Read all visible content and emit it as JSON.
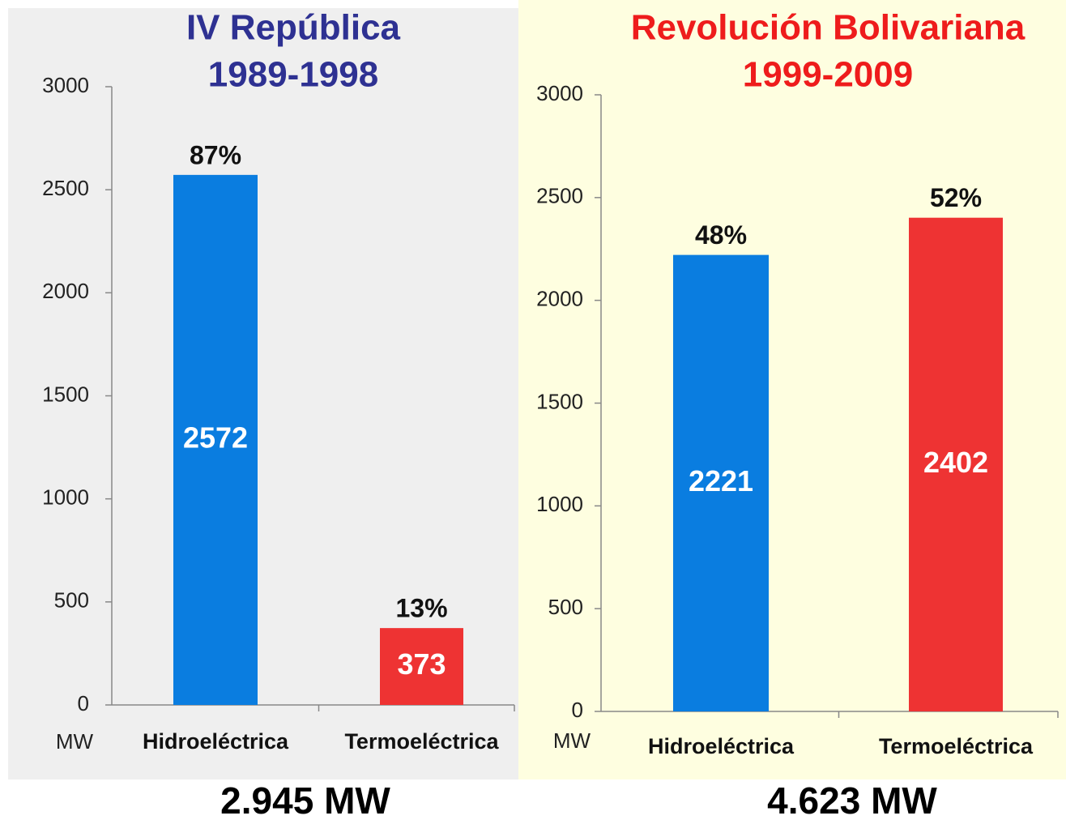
{
  "chart_data": [
    {
      "type": "bar",
      "title": [
        "IV República",
        "1989-1998"
      ],
      "title_color": "#2e3192",
      "categories": [
        "Hidroeléctrica",
        "Termoeléctrica"
      ],
      "values": [
        2572,
        373
      ],
      "colors": [
        "#0a7de0",
        "#ee3333"
      ],
      "annotations": [
        "87%",
        "13%"
      ],
      "unit": "MW",
      "total": "2.945 MW",
      "background": "#efefef",
      "ylim": [
        0,
        3000
      ],
      "yticks": [
        0,
        500,
        1000,
        1500,
        2000,
        2500,
        3000
      ],
      "grid": false
    },
    {
      "type": "bar",
      "title": [
        "Revolución Bolivariana",
        "1999-2009"
      ],
      "title_color": "#ee1c1c",
      "categories": [
        "Hidroeléctrica",
        "Termoeléctrica"
      ],
      "values": [
        2221,
        2402
      ],
      "colors": [
        "#0a7de0",
        "#ee3333"
      ],
      "annotations": [
        "48%",
        "52%"
      ],
      "unit": "MW",
      "total": "4.623 MW",
      "background": "#fefee0",
      "ylim": [
        0,
        3000
      ],
      "yticks": [
        0,
        500,
        1000,
        1500,
        2000,
        2500,
        3000
      ],
      "grid": false
    }
  ]
}
